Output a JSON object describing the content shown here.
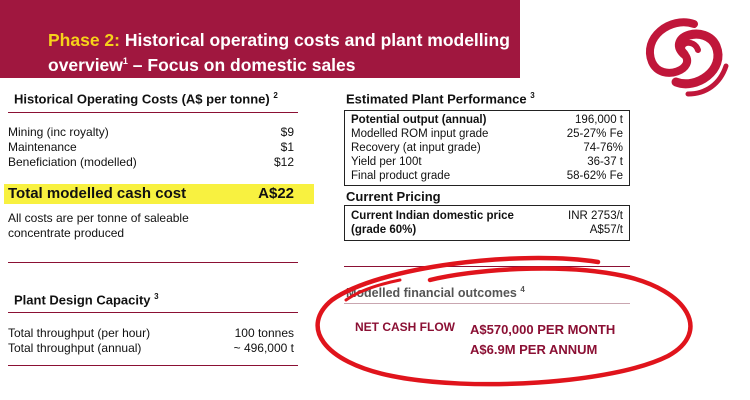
{
  "header": {
    "phase": "Phase 2:",
    "title_rest_1": " Historical operating costs and plant modelling",
    "title_rest_2": "overview",
    "title_sup": "1",
    "title_rest_3": " – Focus on domestic sales"
  },
  "historical": {
    "title": "Historical Operating Costs (A$ per tonne)",
    "title_sup": "2",
    "items": [
      {
        "label": "Mining (inc royalty)",
        "value": "$9"
      },
      {
        "label": "Maintenance",
        "value": "$1"
      },
      {
        "label": "Beneficiation (modelled)",
        "value": "$12"
      }
    ],
    "total_label": "Total modelled cash cost",
    "total_value": "A$22",
    "note": "All costs are per tonne of saleable concentrate produced"
  },
  "design": {
    "title": "Plant Design Capacity",
    "title_sup": "3",
    "items": [
      {
        "label": "Total throughput (per hour)",
        "value": "100 tonnes"
      },
      {
        "label": "Total throughput (annual)",
        "value": "~ 496,000 t"
      }
    ]
  },
  "performance": {
    "title": "Estimated Plant Performance",
    "title_sup": "3",
    "items": [
      {
        "label": "Potential output (annual)",
        "value": "196,000 t"
      },
      {
        "label": "Modelled ROM input grade",
        "value": "25-27% Fe"
      },
      {
        "label": "Recovery (at input grade)",
        "value": "74-76%"
      },
      {
        "label": "Yield per 100t",
        "value": "36-37 t"
      },
      {
        "label": "Final product grade",
        "value": "58-62% Fe"
      }
    ]
  },
  "pricing": {
    "title": "Current Pricing",
    "label_1": "Current Indian domestic price",
    "label_2": "(grade 60%)",
    "value_1": "INR 2753/t",
    "value_2": "A$57/t"
  },
  "financial": {
    "title": "Modelled financial outcomes",
    "title_sup": "4",
    "label": "NET CASH FLOW",
    "monthly": "A$570,000 PER MONTH",
    "annual": "A$6.9M PER ANNUM"
  },
  "colors": {
    "brand": "#a0173f",
    "highlight": "#f7f02b",
    "annotation_red": "#e0141c"
  }
}
